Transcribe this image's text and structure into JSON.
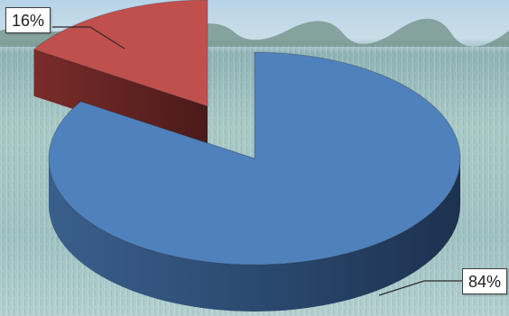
{
  "chart_data": {
    "type": "pie",
    "style": "3d-exploded",
    "labels": [
      "16%",
      "84%"
    ],
    "values": [
      16,
      84
    ],
    "colors": [
      "#c0504d",
      "#4f81bd"
    ],
    "legend": "none",
    "background": "grass-field-photo"
  }
}
